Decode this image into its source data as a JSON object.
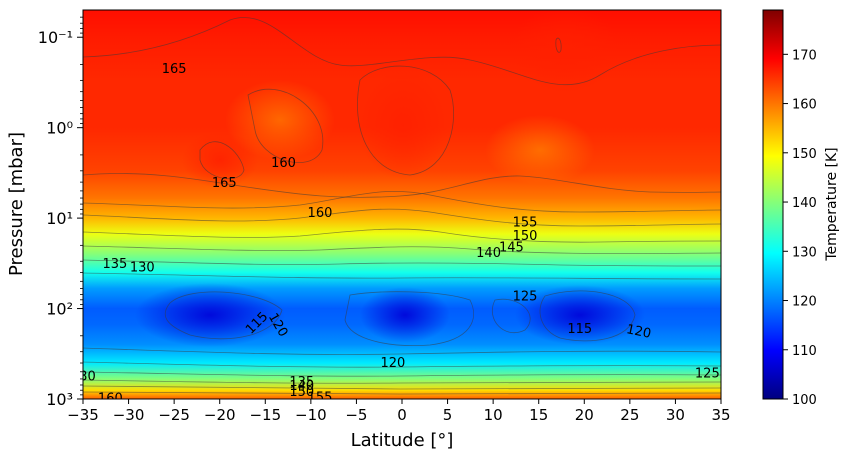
{
  "chart_data": {
    "type": "heatmap",
    "subtype": "filled-contour",
    "xlabel": "Latitude [°]",
    "ylabel": "Pressure [mbar]",
    "xlim": [
      -35,
      35
    ],
    "ylim": [
      1000,
      0.05
    ],
    "yscale": "log",
    "x_ticks": [
      -35,
      -30,
      -25,
      -20,
      -15,
      -10,
      -5,
      0,
      5,
      10,
      15,
      20,
      25,
      30,
      35
    ],
    "x_tick_labels": [
      "−35",
      "−30",
      "−25",
      "−20",
      "−15",
      "−10",
      "−5",
      "0",
      "5",
      "10",
      "15",
      "20",
      "25",
      "30",
      "35"
    ],
    "y_ticks": [
      0.1,
      1,
      10,
      100,
      1000
    ],
    "y_tick_labels": [
      "10⁻¹",
      "10⁰",
      "10¹",
      "10²",
      "10³"
    ],
    "colorbar": {
      "label": "Temperature [K]",
      "range": [
        100,
        179
      ],
      "ticks": [
        100,
        110,
        120,
        130,
        140,
        150,
        160,
        170
      ],
      "tick_labels": [
        "100",
        "110",
        "120",
        "130",
        "140",
        "150",
        "160",
        "170"
      ],
      "colormap": [
        "#00007f",
        "#0000ff",
        "#007fff",
        "#00ffff",
        "#7fff7f",
        "#ffff00",
        "#ff7f00",
        "#ff0000",
        "#7f0000"
      ]
    },
    "temperature_profile": [
      {
        "pressure": 0.05,
        "temperature": 168
      },
      {
        "pressure": 0.1,
        "temperature": 167
      },
      {
        "pressure": 0.3,
        "temperature": 166
      },
      {
        "pressure": 1,
        "temperature": 166
      },
      {
        "pressure": 3,
        "temperature": 164
      },
      {
        "pressure": 6,
        "temperature": 160
      },
      {
        "pressure": 10,
        "temperature": 155
      },
      {
        "pressure": 15,
        "temperature": 148
      },
      {
        "pressure": 25,
        "temperature": 140
      },
      {
        "pressure": 40,
        "temperature": 131
      },
      {
        "pressure": 60,
        "temperature": 122
      },
      {
        "pressure": 100,
        "temperature": 117
      },
      {
        "pressure": 150,
        "temperature": 118
      },
      {
        "pressure": 250,
        "temperature": 121
      },
      {
        "pressure": 400,
        "temperature": 128
      },
      {
        "pressure": 600,
        "temperature": 140
      },
      {
        "pressure": 800,
        "temperature": 152
      },
      {
        "pressure": 1000,
        "temperature": 162
      }
    ],
    "contour_labels": [
      {
        "text": "165",
        "lat": -25,
        "pressure": 0.22,
        "rotation": 0
      },
      {
        "text": "165",
        "lat": -19.5,
        "pressure": 4,
        "rotation": 0
      },
      {
        "text": "160",
        "lat": -13,
        "pressure": 2.4,
        "rotation": 0
      },
      {
        "text": "160",
        "lat": -9,
        "pressure": 8.6,
        "rotation": 0
      },
      {
        "text": "155",
        "lat": 13.5,
        "pressure": 10.9,
        "rotation": 0
      },
      {
        "text": "150",
        "lat": 13.5,
        "pressure": 15.4,
        "rotation": 0
      },
      {
        "text": "145",
        "lat": 12,
        "pressure": 20.5,
        "rotation": 0
      },
      {
        "text": "140",
        "lat": 9.5,
        "pressure": 23.8,
        "rotation": 0
      },
      {
        "text": "135",
        "lat": -31.5,
        "pressure": 31.5,
        "rotation": 0
      },
      {
        "text": "130",
        "lat": -28.5,
        "pressure": 34.2,
        "rotation": 0
      },
      {
        "text": "125",
        "lat": 13.5,
        "pressure": 72,
        "rotation": 0
      },
      {
        "text": "115",
        "lat": -16,
        "pressure": 142,
        "rotation": -45
      },
      {
        "text": "120",
        "lat": -13.5,
        "pressure": 150,
        "rotation": 60
      },
      {
        "text": "115",
        "lat": 19.5,
        "pressure": 165,
        "rotation": 0
      },
      {
        "text": "120",
        "lat": 26,
        "pressure": 175,
        "rotation": 12
      },
      {
        "text": "120",
        "lat": -1,
        "pressure": 390,
        "rotation": 0
      },
      {
        "text": "125",
        "lat": 33.5,
        "pressure": 510,
        "rotation": 0
      },
      {
        "text": "30",
        "lat": -34.5,
        "pressure": 550,
        "rotation": 0
      },
      {
        "text": "135",
        "lat": -11,
        "pressure": 630,
        "rotation": 0
      },
      {
        "text": "140",
        "lat": -11,
        "pressure": 700,
        "rotation": 0
      },
      {
        "text": "150",
        "lat": -11,
        "pressure": 820,
        "rotation": 0
      },
      {
        "text": "155",
        "lat": -9,
        "pressure": 940,
        "rotation": 0
      },
      {
        "text": "160",
        "lat": -32,
        "pressure": 960,
        "rotation": 0
      }
    ]
  }
}
